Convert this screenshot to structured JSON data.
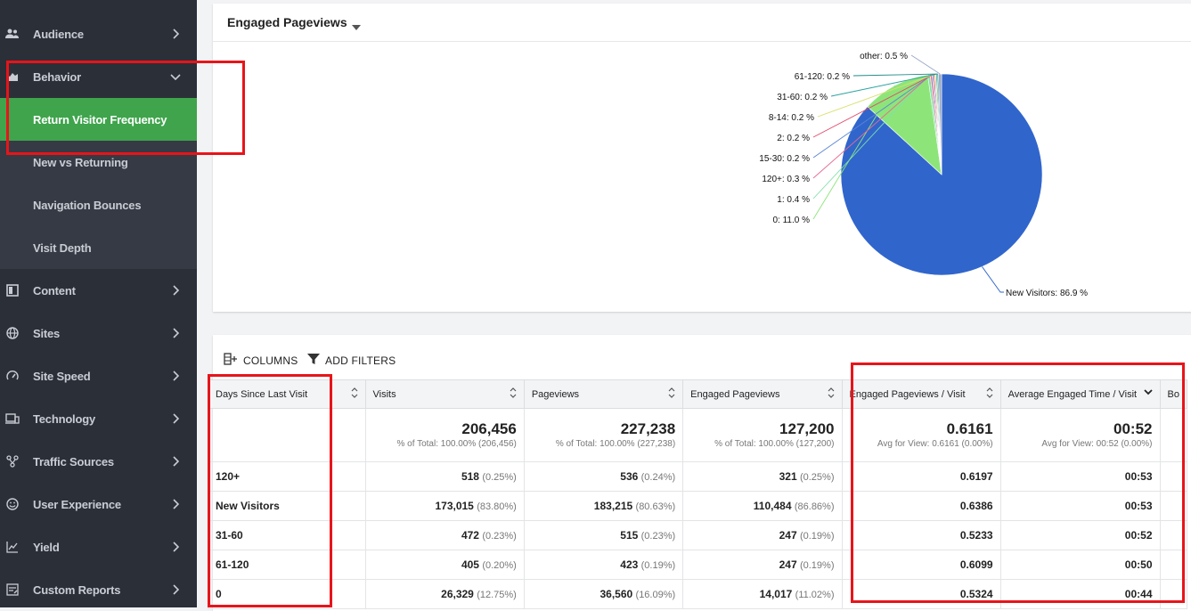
{
  "sidebar": {
    "items": [
      {
        "label": "Audience",
        "icon": "people-icon"
      },
      {
        "label": "Behavior",
        "icon": "behavior-icon",
        "expanded": true
      },
      {
        "label": "Content",
        "icon": "content-icon"
      },
      {
        "label": "Sites",
        "icon": "globe-icon"
      },
      {
        "label": "Site Speed",
        "icon": "speedometer-icon"
      },
      {
        "label": "Technology",
        "icon": "devices-icon"
      },
      {
        "label": "Traffic Sources",
        "icon": "traffic-icon"
      },
      {
        "label": "User Experience",
        "icon": "smiley-icon"
      },
      {
        "label": "Yield",
        "icon": "chart-line-icon"
      },
      {
        "label": "Custom Reports",
        "icon": "custom-report-icon"
      }
    ],
    "behavior_subitems": [
      {
        "label": "Return Visitor Frequency",
        "active": true
      },
      {
        "label": "New vs Returning"
      },
      {
        "label": "Navigation Bounces"
      },
      {
        "label": "Visit Depth"
      }
    ]
  },
  "chart_panel": {
    "metric_label": "Engaged Pageviews"
  },
  "chart_data": {
    "type": "pie",
    "slices": [
      {
        "label": "New Visitors",
        "value": 86.9,
        "display": "New Visitors: 86.9 %",
        "color": "#3065cc"
      },
      {
        "label": "0",
        "value": 11.0,
        "display": "0: 11.0 %",
        "color": "#8de57a"
      },
      {
        "label": "1",
        "value": 0.4,
        "display": "1: 0.4 %",
        "color": "#7fe0a8"
      },
      {
        "label": "120+",
        "value": 0.3,
        "display": "120+: 0.3 %",
        "color": "#e66b8f"
      },
      {
        "label": "15-30",
        "value": 0.2,
        "display": "15-30: 0.2 %",
        "color": "#5b84d6"
      },
      {
        "label": "2",
        "value": 0.2,
        "display": "2: 0.2 %",
        "color": "#e04a6a"
      },
      {
        "label": "8-14",
        "value": 0.2,
        "display": "8-14: 0.2 %",
        "color": "#d8e06a"
      },
      {
        "label": "31-60",
        "value": 0.2,
        "display": "31-60: 0.2 %",
        "color": "#2aa3a0"
      },
      {
        "label": "61-120",
        "value": 0.2,
        "display": "61-120: 0.2 %",
        "color": "#1d8a86"
      },
      {
        "label": "other",
        "value": 0.5,
        "display": "other: 0.5 %",
        "color": "#9aa7c7"
      }
    ]
  },
  "table_toolbar": {
    "columns_label": "COLUMNS",
    "filters_label": "ADD FILTERS"
  },
  "table": {
    "headers": [
      "Days Since Last Visit",
      "Visits",
      "Pageviews",
      "Engaged Pageviews",
      "Engaged Pageviews / Visit",
      "Average Engaged Time / Visit",
      "Bo"
    ],
    "totals": [
      {
        "value": "",
        "sub": ""
      },
      {
        "value": "206,456",
        "sub": "% of Total: 100.00% (206,456)"
      },
      {
        "value": "227,238",
        "sub": "% of Total: 100.00% (227,238)"
      },
      {
        "value": "127,200",
        "sub": "% of Total: 100.00% (127,200)"
      },
      {
        "value": "0.6161",
        "sub": "Avg for View: 0.6161 (0.00%)"
      },
      {
        "value": "00:52",
        "sub": "Avg for View: 00:52 (0.00%)"
      },
      {
        "value": "",
        "sub": ""
      }
    ],
    "rows": [
      {
        "label": "120+",
        "visits": "518",
        "visits_pct": "(0.25%)",
        "pageviews": "536",
        "pageviews_pct": "(0.24%)",
        "engaged": "321",
        "engaged_pct": "(0.25%)",
        "epv": "0.6197",
        "aet": "00:53"
      },
      {
        "label": "New Visitors",
        "visits": "173,015",
        "visits_pct": "(83.80%)",
        "pageviews": "183,215",
        "pageviews_pct": "(80.63%)",
        "engaged": "110,484",
        "engaged_pct": "(86.86%)",
        "epv": "0.6386",
        "aet": "00:53"
      },
      {
        "label": "31-60",
        "visits": "472",
        "visits_pct": "(0.23%)",
        "pageviews": "515",
        "pageviews_pct": "(0.23%)",
        "engaged": "247",
        "engaged_pct": "(0.19%)",
        "epv": "0.5233",
        "aet": "00:52"
      },
      {
        "label": "61-120",
        "visits": "405",
        "visits_pct": "(0.20%)",
        "pageviews": "423",
        "pageviews_pct": "(0.19%)",
        "engaged": "247",
        "engaged_pct": "(0.19%)",
        "epv": "0.6099",
        "aet": "00:50"
      },
      {
        "label": "0",
        "visits": "26,329",
        "visits_pct": "(12.75%)",
        "pageviews": "36,560",
        "pageviews_pct": "(16.09%)",
        "engaged": "14,017",
        "engaged_pct": "(11.02%)",
        "epv": "0.5324",
        "aet": "00:44"
      }
    ]
  },
  "colors": {
    "sidebar_bg": "#2b2f38",
    "active_green": "#3fa44c",
    "highlight_red": "#e8141a"
  }
}
